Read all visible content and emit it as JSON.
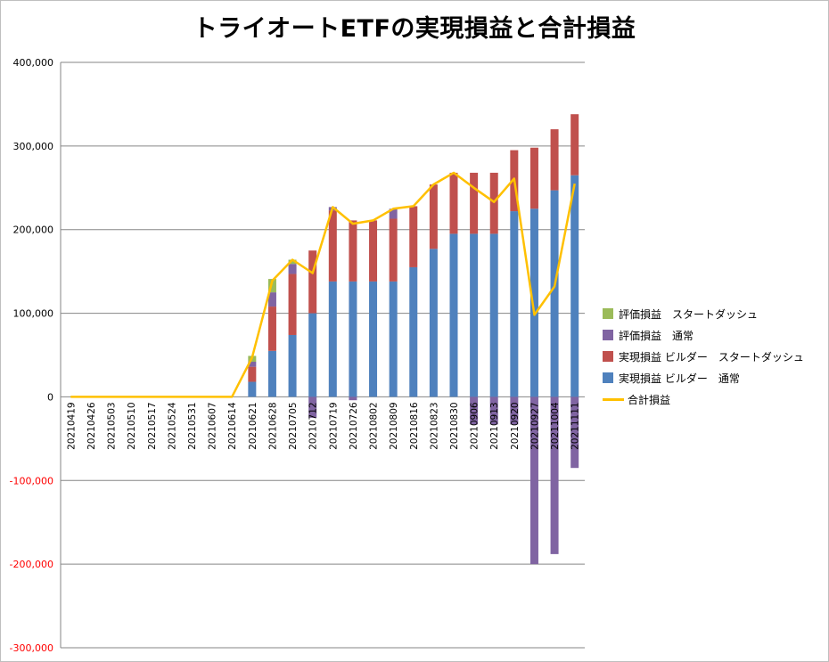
{
  "chart_data": {
    "type": "bar",
    "title": "トライオートETFの実現損益と合計損益",
    "categories": [
      "20210419",
      "20210426",
      "20210503",
      "20210510",
      "20210517",
      "20210524",
      "20210531",
      "20210607",
      "20210614",
      "20210621",
      "20210628",
      "20210705",
      "20210712",
      "20210719",
      "20210726",
      "20210802",
      "20210809",
      "20210816",
      "20210823",
      "20210830",
      "20210906",
      "20210913",
      "20210920",
      "20210927",
      "20211004",
      "20211111"
    ],
    "ylim": [
      -300000,
      400000
    ],
    "yticks": [
      {
        "value": 400000,
        "label": "400,000"
      },
      {
        "value": 300000,
        "label": "300,000"
      },
      {
        "value": 200000,
        "label": "200,000"
      },
      {
        "value": 100000,
        "label": "100,000"
      },
      {
        "value": 0,
        "label": "0"
      },
      {
        "value": -100000,
        "label": "-100,000"
      },
      {
        "value": -200000,
        "label": "-200,000"
      },
      {
        "value": -300000,
        "label": "-300,000"
      }
    ],
    "negative_tick_color": "#ff0000",
    "grid": true,
    "legend_position": "right",
    "stacked_series": [
      {
        "name": "実現損益 ビルダー　通常",
        "color": "#4f81bd",
        "values": [
          0,
          0,
          0,
          0,
          0,
          0,
          0,
          0,
          0,
          18000,
          55000,
          74000,
          100000,
          138000,
          138000,
          138000,
          138000,
          155000,
          177000,
          195000,
          195000,
          195000,
          222000,
          225000,
          247000,
          265000
        ]
      },
      {
        "name": "実現損益 ビルダー　スタートダッシュ",
        "color": "#c0504d",
        "values": [
          0,
          0,
          0,
          0,
          0,
          0,
          0,
          0,
          0,
          18000,
          53000,
          73000,
          75000,
          85000,
          73000,
          73000,
          75000,
          73000,
          77000,
          73000,
          73000,
          73000,
          73000,
          73000,
          73000,
          73000
        ]
      },
      {
        "name": "評価損益　通常",
        "color": "#8064a2",
        "values": [
          0,
          0,
          0,
          0,
          0,
          0,
          0,
          0,
          0,
          6000,
          17000,
          12000,
          -25000,
          4000,
          -4000,
          0,
          12000,
          0,
          0,
          0,
          -33000,
          -33000,
          -33000,
          -200000,
          -188000,
          -85000
        ]
      },
      {
        "name": "評価損益　スタートダッシュ",
        "color": "#9bbb59",
        "values": [
          0,
          0,
          0,
          0,
          0,
          0,
          0,
          0,
          0,
          7000,
          16000,
          5000,
          0,
          0,
          0,
          0,
          0,
          0,
          0,
          0,
          0,
          0,
          0,
          0,
          0,
          0
        ]
      }
    ],
    "line_series": {
      "name": "合計損益",
      "color": "#ffc000",
      "values": [
        0,
        0,
        0,
        0,
        0,
        0,
        0,
        0,
        0,
        47000,
        139000,
        164000,
        148000,
        227000,
        207000,
        211000,
        225000,
        228000,
        254000,
        268000,
        250000,
        233000,
        261000,
        98000,
        132000,
        255000
      ]
    },
    "legend_order": [
      "評価損益　スタートダッシュ",
      "評価損益　通常",
      "実現損益 ビルダー　スタートダッシュ",
      "実現損益 ビルダー　通常",
      "合計損益"
    ]
  }
}
